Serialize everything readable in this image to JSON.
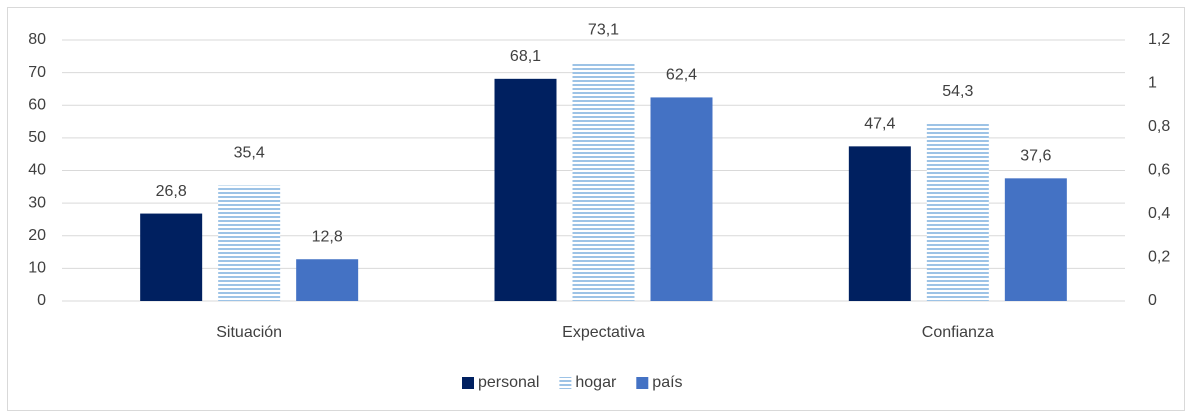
{
  "chart_data": {
    "type": "bar",
    "categories": [
      "Situación",
      "Expectativa",
      "Confianza"
    ],
    "series": [
      {
        "name": "personal",
        "color": "#002060",
        "values": [
          26.8,
          68.1,
          47.4
        ],
        "value_labels": [
          "26,8",
          "68,1",
          "47,4"
        ]
      },
      {
        "name": "hogar",
        "color": "#9dc3e6",
        "pattern": "horizontal",
        "values": [
          35.4,
          73.1,
          54.3
        ],
        "value_labels": [
          "35,4",
          "73,1",
          "54,3"
        ]
      },
      {
        "name": "país",
        "color": "#4472c4",
        "values": [
          12.8,
          62.4,
          37.6
        ],
        "value_labels": [
          "12,8",
          "62,4",
          "37,6"
        ]
      }
    ],
    "ylim": [
      0,
      80
    ],
    "yticks": [
      0,
      10,
      20,
      30,
      40,
      50,
      60,
      70,
      80
    ],
    "y2lim": [
      0,
      1.2
    ],
    "y2ticks": [
      0,
      {
        "value": 0.2,
        "label": "0,2"
      },
      {
        "value": 0.4,
        "label": "0,4"
      },
      {
        "value": 0.6,
        "label": "0,6"
      },
      {
        "value": 0.8,
        "label": "0,8"
      },
      1,
      {
        "value": 1.2,
        "label": "1,2"
      }
    ],
    "grid": true,
    "legend": "bottom"
  }
}
